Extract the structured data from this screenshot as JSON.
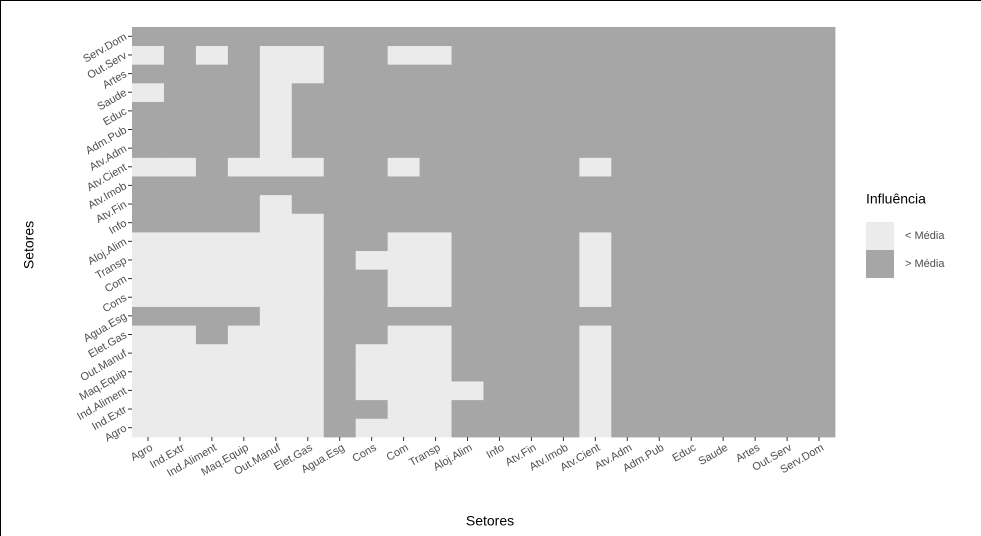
{
  "chart_data": {
    "type": "heatmap",
    "x_label": "Setores",
    "y_label": "Setores",
    "x_categories": [
      "Agro",
      "Ind.Extr",
      "Ind.Aliment",
      "Maq.Equip",
      "Out.Manuf",
      "Elet.Gas",
      "Agua.Esg",
      "Cons",
      "Com",
      "Transp",
      "Aloj.Alim",
      "Info",
      "Atv.Fin",
      "Atv.Imob",
      "Atv.Cient",
      "Atv.Adm",
      "Adm.Pub",
      "Educ",
      "Saude",
      "Artes",
      "Out.Serv",
      "Serv.Dom"
    ],
    "y_categories": [
      "Agro",
      "Ind.Extr",
      "Ind.Aliment",
      "Maq.Equip",
      "Out.Manuf",
      "Elet.Gas",
      "Agua.Esg",
      "Cons",
      "Com",
      "Transp",
      "Aloj.Alim",
      "Info",
      "Atv.Fin",
      "Atv.Imob",
      "Atv.Cient",
      "Atv.Adm",
      "Adm.Pub",
      "Educ",
      "Saude",
      "Artes",
      "Out.Serv",
      "Serv.Dom"
    ],
    "legend": {
      "title": "Influência",
      "levels": [
        {
          "label": "< Média",
          "color": "#ebebeb"
        },
        {
          "label": "> Média",
          "color": "#a6a6a6"
        }
      ]
    },
    "z": [
      [
        0,
        0,
        0,
        0,
        0,
        0,
        1,
        0,
        0,
        0,
        1,
        1,
        1,
        1,
        0,
        1,
        1,
        1,
        1,
        1,
        1,
        1
      ],
      [
        0,
        0,
        0,
        0,
        0,
        0,
        1,
        1,
        0,
        0,
        1,
        1,
        1,
        1,
        0,
        1,
        1,
        1,
        1,
        1,
        1,
        1
      ],
      [
        0,
        0,
        0,
        0,
        0,
        0,
        1,
        0,
        0,
        0,
        0,
        1,
        1,
        1,
        0,
        1,
        1,
        1,
        1,
        1,
        1,
        1
      ],
      [
        0,
        0,
        0,
        0,
        0,
        0,
        1,
        0,
        0,
        0,
        1,
        1,
        1,
        1,
        0,
        1,
        1,
        1,
        1,
        1,
        1,
        1
      ],
      [
        0,
        0,
        0,
        0,
        0,
        0,
        1,
        0,
        0,
        0,
        1,
        1,
        1,
        1,
        0,
        1,
        1,
        1,
        1,
        1,
        1,
        1
      ],
      [
        0,
        0,
        1,
        0,
        0,
        0,
        1,
        1,
        0,
        0,
        1,
        1,
        1,
        1,
        0,
        1,
        1,
        1,
        1,
        1,
        1,
        1
      ],
      [
        1,
        1,
        1,
        1,
        0,
        0,
        1,
        1,
        1,
        1,
        1,
        1,
        1,
        1,
        1,
        1,
        1,
        1,
        1,
        1,
        1,
        1
      ],
      [
        0,
        0,
        0,
        0,
        0,
        0,
        1,
        1,
        0,
        0,
        1,
        1,
        1,
        1,
        0,
        1,
        1,
        1,
        1,
        1,
        1,
        1
      ],
      [
        0,
        0,
        0,
        0,
        0,
        0,
        1,
        1,
        0,
        0,
        1,
        1,
        1,
        1,
        0,
        1,
        1,
        1,
        1,
        1,
        1,
        1
      ],
      [
        0,
        0,
        0,
        0,
        0,
        0,
        1,
        0,
        0,
        0,
        1,
        1,
        1,
        1,
        0,
        1,
        1,
        1,
        1,
        1,
        1,
        1
      ],
      [
        0,
        0,
        0,
        0,
        0,
        0,
        1,
        1,
        0,
        0,
        1,
        1,
        1,
        1,
        0,
        1,
        1,
        1,
        1,
        1,
        1,
        1
      ],
      [
        1,
        1,
        1,
        1,
        0,
        0,
        1,
        1,
        1,
        1,
        1,
        1,
        1,
        1,
        1,
        1,
        1,
        1,
        1,
        1,
        1,
        1
      ],
      [
        1,
        1,
        1,
        1,
        0,
        1,
        1,
        1,
        1,
        1,
        1,
        1,
        1,
        1,
        1,
        1,
        1,
        1,
        1,
        1,
        1,
        1
      ],
      [
        1,
        1,
        1,
        1,
        1,
        1,
        1,
        1,
        1,
        1,
        1,
        1,
        1,
        1,
        1,
        1,
        1,
        1,
        1,
        1,
        1,
        1
      ],
      [
        0,
        0,
        1,
        0,
        0,
        0,
        1,
        1,
        0,
        1,
        1,
        1,
        1,
        1,
        0,
        1,
        1,
        1,
        1,
        1,
        1,
        1
      ],
      [
        1,
        1,
        1,
        1,
        0,
        1,
        1,
        1,
        1,
        1,
        1,
        1,
        1,
        1,
        1,
        1,
        1,
        1,
        1,
        1,
        1,
        1
      ],
      [
        1,
        1,
        1,
        1,
        0,
        1,
        1,
        1,
        1,
        1,
        1,
        1,
        1,
        1,
        1,
        1,
        1,
        1,
        1,
        1,
        1,
        1
      ],
      [
        1,
        1,
        1,
        1,
        0,
        1,
        1,
        1,
        1,
        1,
        1,
        1,
        1,
        1,
        1,
        1,
        1,
        1,
        1,
        1,
        1,
        1
      ],
      [
        0,
        1,
        1,
        1,
        0,
        1,
        1,
        1,
        1,
        1,
        1,
        1,
        1,
        1,
        1,
        1,
        1,
        1,
        1,
        1,
        1,
        1
      ],
      [
        1,
        1,
        1,
        1,
        0,
        0,
        1,
        1,
        1,
        1,
        1,
        1,
        1,
        1,
        1,
        1,
        1,
        1,
        1,
        1,
        1,
        1
      ],
      [
        0,
        1,
        0,
        1,
        0,
        0,
        1,
        1,
        0,
        0,
        1,
        1,
        1,
        1,
        1,
        1,
        1,
        1,
        1,
        1,
        1,
        1
      ],
      [
        1,
        1,
        1,
        1,
        1,
        1,
        1,
        1,
        1,
        1,
        1,
        1,
        1,
        1,
        1,
        1,
        1,
        1,
        1,
        1,
        1,
        1
      ]
    ]
  }
}
